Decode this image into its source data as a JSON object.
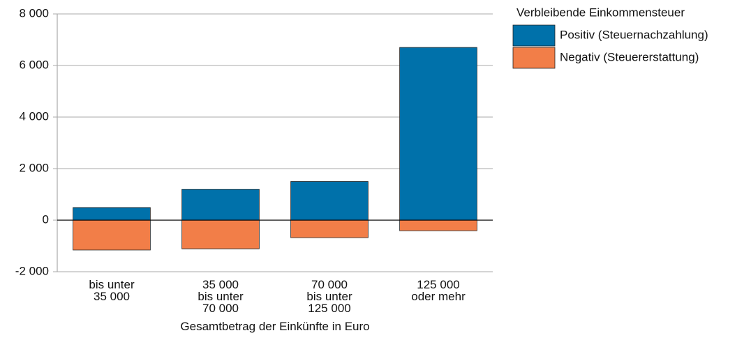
{
  "chart_data": {
    "type": "bar",
    "categories": [
      "bis unter\n35 000",
      "35 000\nbis unter\n70 000",
      "70 000\nbis unter\n125 000",
      "125 000\noder mehr"
    ],
    "series": [
      {
        "name": "Positiv (Steuernachzahlung)",
        "color": "#0071aa",
        "values": [
          490,
          1200,
          1500,
          6700
        ]
      },
      {
        "name": "Negativ (Steuererstattung)",
        "color": "#f27e48",
        "values": [
          -1160,
          -1110,
          -680,
          -410
        ]
      }
    ],
    "ylim": [
      -2000,
      8000
    ],
    "yticks": [
      {
        "value": -2000,
        "label": "-2 000"
      },
      0,
      {
        "value": 2000,
        "label": "2 000"
      },
      {
        "value": 4000,
        "label": "4 000"
      },
      {
        "value": 6000,
        "label": "6 000"
      },
      {
        "value": 8000,
        "label": "8 000"
      }
    ],
    "xlabel": "Gesamtbetrag der Einkünfte in Euro",
    "legend_title": "Verbleibende Einkommensteuer",
    "legend": "right",
    "grid": true
  }
}
